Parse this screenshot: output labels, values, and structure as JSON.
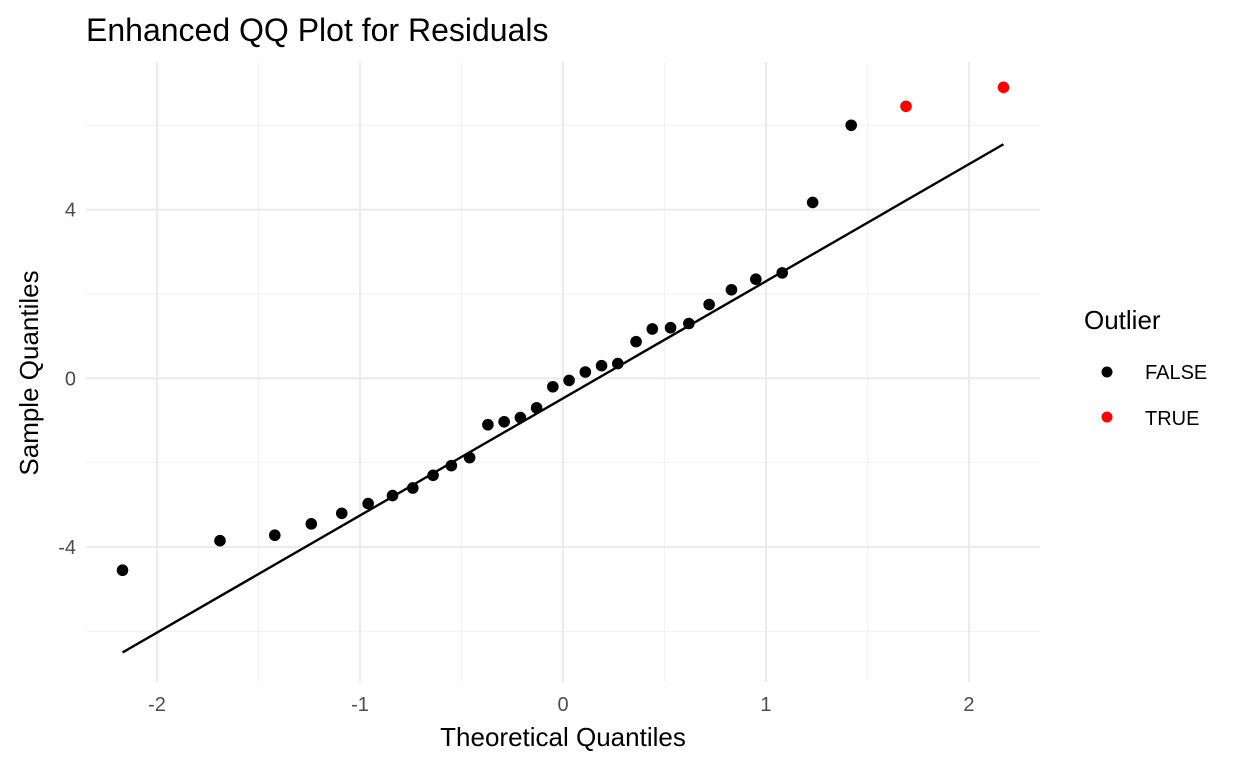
{
  "chart_data": {
    "type": "scatter",
    "title": "Enhanced QQ Plot for Residuals",
    "xlabel": "Theoretical Quantiles",
    "ylabel": "Sample Quantiles",
    "xlim": [
      -2.35,
      2.35
    ],
    "ylim": [
      -7.2,
      7.5
    ],
    "x_ticks": [
      -2,
      -1,
      0,
      1,
      2
    ],
    "y_ticks": [
      -4,
      0,
      4
    ],
    "x_tick_labels": [
      "-2",
      "-1",
      "0",
      "1",
      "2"
    ],
    "y_tick_labels": [
      "-4",
      "0",
      "4"
    ],
    "grid": true,
    "legend": {
      "title": "Outlier",
      "placement": "right",
      "entries": [
        {
          "label": "FALSE",
          "color": "#000000"
        },
        {
          "label": "TRUE",
          "color": "#ff0000"
        }
      ]
    },
    "reference_line": {
      "x": [
        -2.17,
        2.17
      ],
      "y": [
        -6.5,
        5.55
      ]
    },
    "series": [
      {
        "name": "FALSE",
        "color": "#000000",
        "x": [
          -2.17,
          -1.69,
          -1.42,
          -1.24,
          -1.09,
          -0.96,
          -0.84,
          -0.74,
          -0.64,
          -0.55,
          -0.46,
          -0.37,
          -0.29,
          -0.21,
          -0.13,
          -0.05,
          0.03,
          0.11,
          0.19,
          0.27,
          0.36,
          0.44,
          0.53,
          0.62,
          0.72,
          0.83,
          0.95,
          1.08,
          1.23,
          1.42
        ],
        "y": [
          -4.55,
          -3.85,
          -3.72,
          -3.45,
          -3.2,
          -2.97,
          -2.78,
          -2.6,
          -2.3,
          -2.07,
          -1.88,
          -1.1,
          -1.03,
          -0.93,
          -0.7,
          -0.2,
          -0.05,
          0.15,
          0.3,
          0.35,
          0.87,
          1.17,
          1.2,
          1.3,
          1.75,
          2.1,
          2.35,
          2.5,
          4.17,
          6.0
        ]
      },
      {
        "name": "TRUE",
        "color": "#ff0000",
        "x": [
          1.69,
          2.17
        ],
        "y": [
          6.45,
          6.9
        ]
      }
    ]
  }
}
